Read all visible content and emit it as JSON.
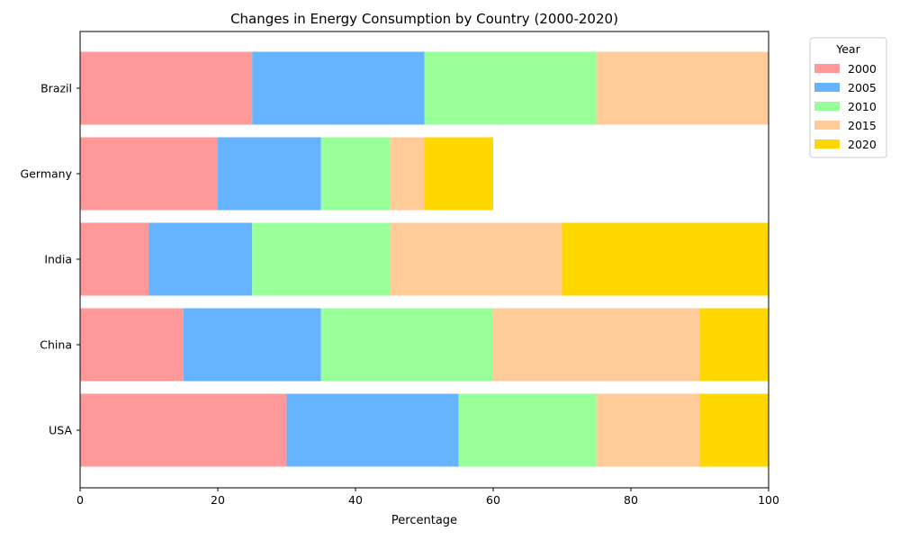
{
  "chart_data": {
    "type": "bar",
    "orientation": "horizontal",
    "stacked": true,
    "title": "Changes in Energy Consumption by Country (2000-2020)",
    "xlabel": "Percentage",
    "ylabel": "",
    "xlim": [
      0,
      100
    ],
    "x_ticks": [
      0,
      20,
      40,
      60,
      80,
      100
    ],
    "categories": [
      "USA",
      "China",
      "India",
      "Germany",
      "Brazil"
    ],
    "series": [
      {
        "name": "2000",
        "color": "#ff9999",
        "values": [
          30,
          15,
          10,
          20,
          25
        ]
      },
      {
        "name": "2005",
        "color": "#66b3ff",
        "values": [
          25,
          20,
          15,
          15,
          25
        ]
      },
      {
        "name": "2010",
        "color": "#99ff99",
        "values": [
          20,
          25,
          20,
          10,
          25
        ]
      },
      {
        "name": "2015",
        "color": "#ffcc99",
        "values": [
          15,
          30,
          25,
          5,
          25
        ]
      },
      {
        "name": "2020",
        "color": "#ffd700",
        "values": [
          10,
          10,
          30,
          10,
          0
        ]
      }
    ],
    "legend": {
      "title": "Year",
      "placement": "outside-top-right"
    },
    "grid": false
  }
}
